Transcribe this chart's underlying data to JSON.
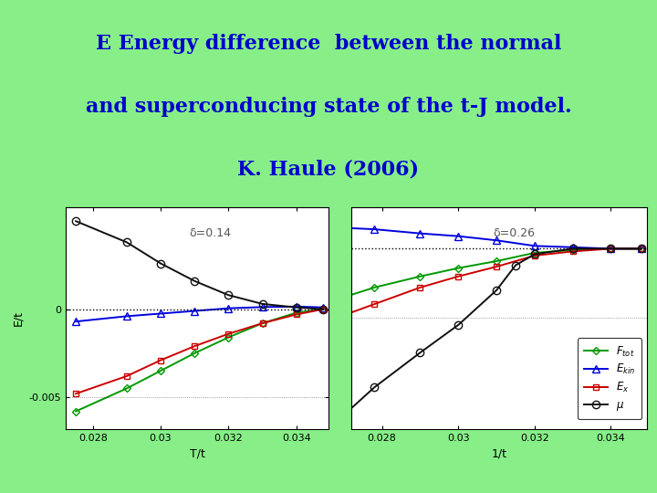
{
  "title_line1": "E Energy difference  between the normal",
  "title_line2": "and superconducing state of the t-J model.",
  "title_line3": "K. Haule (2006)",
  "title_color": "#0000cc",
  "bg_title": "#ffffdd",
  "bg_bottom": "#88ee88",
  "plot_bg": "#ffffff",
  "panel1_label": "δ=0.14",
  "panel2_label": "δ=0.26",
  "xlim": [
    0.0272,
    0.03495
  ],
  "xticks": [
    0.028,
    0.03,
    0.032,
    0.034
  ],
  "xticklabels": [
    "0.028",
    "0.03",
    "0.032",
    "0.034"
  ],
  "panel1": {
    "ylim": [
      -0.0068,
      0.0058
    ],
    "ytick_vals": [
      0.0,
      -0.005
    ],
    "ytick_labels": [
      "0",
      "-0.005"
    ],
    "ylabel": "E/t",
    "F_tot_x": [
      0.0275,
      0.029,
      0.03,
      0.031,
      0.032,
      0.033,
      0.034,
      0.0348
    ],
    "F_tot_y": [
      -0.0058,
      -0.0045,
      -0.0035,
      -0.0025,
      -0.0016,
      -0.0008,
      -0.0002,
      0.0
    ],
    "E_kin_x": [
      0.0275,
      0.029,
      0.03,
      0.031,
      0.032,
      0.033,
      0.034,
      0.0348
    ],
    "E_kin_y": [
      -0.0007,
      -0.0004,
      -0.00025,
      -0.0001,
      5e-05,
      0.00012,
      0.00015,
      0.0001
    ],
    "E_x_x": [
      0.0275,
      0.029,
      0.03,
      0.031,
      0.032,
      0.033,
      0.034,
      0.0348
    ],
    "E_x_y": [
      -0.0048,
      -0.0038,
      -0.0029,
      -0.0021,
      -0.0014,
      -0.0008,
      -0.0003,
      0.0
    ],
    "mu_x": [
      0.0275,
      0.029,
      0.03,
      0.031,
      0.032,
      0.033,
      0.034,
      0.0348
    ],
    "mu_y": [
      0.005,
      0.0038,
      0.0026,
      0.0016,
      0.0008,
      0.0003,
      0.0001,
      0.0
    ]
  },
  "panel2": {
    "ylim": [
      -0.013,
      0.003
    ],
    "ytick_vals": [],
    "ytick_labels": [],
    "F_tot_x": [
      0.027,
      0.0278,
      0.029,
      0.03,
      0.031,
      0.032,
      0.033,
      0.034,
      0.0348
    ],
    "F_tot_y": [
      -0.0035,
      -0.0028,
      -0.002,
      -0.0014,
      -0.0009,
      -0.0003,
      -0.0001,
      0.0,
      0.0
    ],
    "E_kin_x": [
      0.027,
      0.0278,
      0.029,
      0.03,
      0.031,
      0.032,
      0.033,
      0.034,
      0.0348
    ],
    "E_kin_y": [
      0.0015,
      0.0014,
      0.0011,
      0.0009,
      0.0006,
      0.0002,
      0.0001,
      0.0,
      0.0
    ],
    "E_x_x": [
      0.027,
      0.0278,
      0.029,
      0.03,
      0.031,
      0.032,
      0.033,
      0.034,
      0.0348
    ],
    "E_x_y": [
      -0.0048,
      -0.004,
      -0.0028,
      -0.002,
      -0.0013,
      -0.0005,
      -0.0002,
      0.0,
      0.0
    ],
    "mu_x": [
      0.027,
      0.0278,
      0.029,
      0.03,
      0.031,
      0.0315,
      0.032,
      0.033,
      0.034,
      0.0348
    ],
    "mu_y": [
      -0.012,
      -0.01,
      -0.0075,
      -0.0055,
      -0.003,
      -0.0012,
      -0.0004,
      0.0,
      0.0,
      0.0
    ]
  },
  "color_F": "#009900",
  "color_E_kin": "#0000dd",
  "color_E_x": "#cc0000",
  "color_mu": "#111111",
  "title_fontsize": 16,
  "label_fontsize": 9,
  "tick_fontsize": 8
}
